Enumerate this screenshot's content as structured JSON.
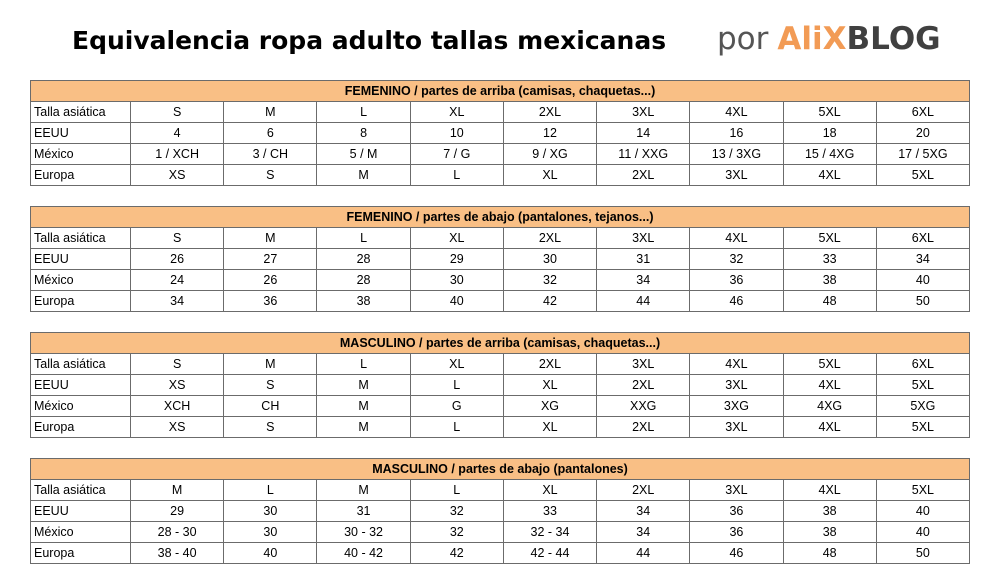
{
  "header": {
    "title": "Equivalencia ropa adulto tallas mexicanas",
    "brand_prefix": "por",
    "brand_ali": "AliX",
    "brand_blog": "BLOG"
  },
  "tables": [
    {
      "caption": "FEMENINO / partes de arriba (camisas, chaquetas...)",
      "rows": [
        {
          "label": "Talla asiática",
          "values": [
            "S",
            "M",
            "L",
            "XL",
            "2XL",
            "3XL",
            "4XL",
            "5XL",
            "6XL"
          ]
        },
        {
          "label": "EEUU",
          "values": [
            "4",
            "6",
            "8",
            "10",
            "12",
            "14",
            "16",
            "18",
            "20"
          ]
        },
        {
          "label": "México",
          "values": [
            "1 / XCH",
            "3 / CH",
            "5 / M",
            "7 / G",
            "9 / XG",
            "11 / XXG",
            "13 / 3XG",
            "15 / 4XG",
            "17 / 5XG"
          ]
        },
        {
          "label": "Europa",
          "values": [
            "XS",
            "S",
            "M",
            "L",
            "XL",
            "2XL",
            "3XL",
            "4XL",
            "5XL"
          ]
        }
      ]
    },
    {
      "caption": "FEMENINO / partes de abajo (pantalones, tejanos...)",
      "rows": [
        {
          "label": "Talla asiática",
          "values": [
            "S",
            "M",
            "L",
            "XL",
            "2XL",
            "3XL",
            "4XL",
            "5XL",
            "6XL"
          ]
        },
        {
          "label": "EEUU",
          "values": [
            "26",
            "27",
            "28",
            "29",
            "30",
            "31",
            "32",
            "33",
            "34"
          ]
        },
        {
          "label": "México",
          "values": [
            "24",
            "26",
            "28",
            "30",
            "32",
            "34",
            "36",
            "38",
            "40"
          ]
        },
        {
          "label": "Europa",
          "values": [
            "34",
            "36",
            "38",
            "40",
            "42",
            "44",
            "46",
            "48",
            "50"
          ]
        }
      ]
    },
    {
      "caption": "MASCULINO / partes de arriba (camisas, chaquetas...)",
      "rows": [
        {
          "label": "Talla asiática",
          "values": [
            "S",
            "M",
            "L",
            "XL",
            "2XL",
            "3XL",
            "4XL",
            "5XL",
            "6XL"
          ]
        },
        {
          "label": "EEUU",
          "values": [
            "XS",
            "S",
            "M",
            "L",
            "XL",
            "2XL",
            "3XL",
            "4XL",
            "5XL"
          ]
        },
        {
          "label": "México",
          "values": [
            "XCH",
            "CH",
            "M",
            "G",
            "XG",
            "XXG",
            "3XG",
            "4XG",
            "5XG"
          ]
        },
        {
          "label": "Europa",
          "values": [
            "XS",
            "S",
            "M",
            "L",
            "XL",
            "2XL",
            "3XL",
            "4XL",
            "5XL"
          ]
        }
      ]
    },
    {
      "caption": "MASCULINO / partes de abajo (pantalones)",
      "rows": [
        {
          "label": "Talla asiática",
          "values": [
            "M",
            "L",
            "M",
            "L",
            "XL",
            "2XL",
            "3XL",
            "4XL",
            "5XL"
          ]
        },
        {
          "label": "EEUU",
          "values": [
            "29",
            "30",
            "31",
            "32",
            "33",
            "34",
            "36",
            "38",
            "40"
          ]
        },
        {
          "label": "México",
          "values": [
            "28 - 30",
            "30",
            "30 - 32",
            "32",
            "32 - 34",
            "34",
            "36",
            "38",
            "40"
          ]
        },
        {
          "label": "Europa",
          "values": [
            "38 - 40",
            "40",
            "40 - 42",
            "42",
            "42 - 44",
            "44",
            "46",
            "48",
            "50"
          ]
        }
      ]
    }
  ]
}
